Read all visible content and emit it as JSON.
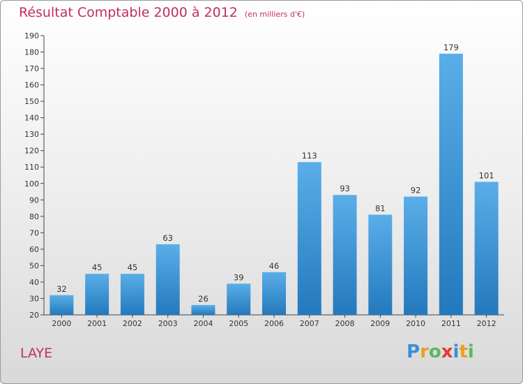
{
  "chart_data": {
    "type": "bar",
    "title": "Résultat Comptable 2000 à 2012",
    "subtitle": "(en milliers d'€)",
    "categories": [
      "2000",
      "2001",
      "2002",
      "2003",
      "2004",
      "2005",
      "2006",
      "2007",
      "2008",
      "2009",
      "2010",
      "2011",
      "2012"
    ],
    "values": [
      32,
      45,
      45,
      63,
      26,
      39,
      46,
      113,
      93,
      81,
      92,
      179,
      101
    ],
    "ylim": [
      20,
      190
    ],
    "yticks": [
      20,
      30,
      40,
      50,
      60,
      70,
      80,
      90,
      100,
      110,
      120,
      130,
      140,
      150,
      160,
      170,
      180,
      190
    ],
    "xlabel": "",
    "ylabel": "",
    "grid": false,
    "colors": {
      "bar_top": "#5aaee8",
      "bar_bottom": "#2379bd",
      "accent": "#c0305a"
    }
  },
  "location": "LAYE",
  "brand": {
    "letters": [
      "P",
      "r",
      "o",
      "x",
      "i",
      "t",
      "i"
    ],
    "colors": [
      "#3a8fd6",
      "#e8a020",
      "#5cb85c",
      "#e23a3a",
      "#3a8fd6",
      "#e8a020",
      "#5cb85c"
    ]
  }
}
